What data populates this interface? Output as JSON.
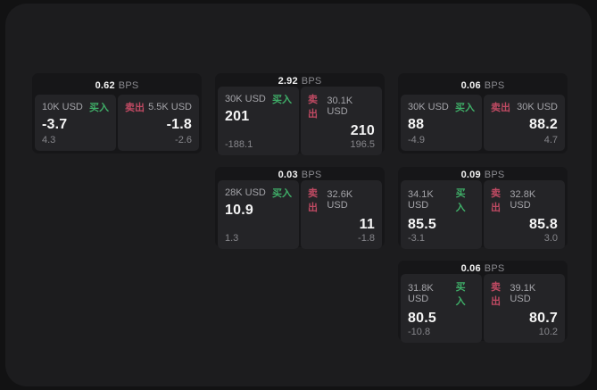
{
  "labels": {
    "bps_unit": "BPS",
    "buy": "买入",
    "sell": "卖出"
  },
  "colors": {
    "page_bg": "#121213",
    "window_bg": "#1c1c1e",
    "card_bg": "#161618",
    "panel_bg": "#242427",
    "buy_accent": "#3fae68",
    "sell_accent": "#c04a63",
    "value_text": "#f5f5f5",
    "muted_text": "#89898e"
  },
  "cards": [
    {
      "bps": "0.62",
      "buy": {
        "size": "10K USD",
        "price": "-3.7",
        "delta": "4.3"
      },
      "sell": {
        "size": "5.5K USD",
        "price": "-1.8",
        "delta": "-2.6"
      }
    },
    {
      "bps": "2.92",
      "buy": {
        "size": "30K USD",
        "price": "201",
        "delta": "-188.1"
      },
      "sell": {
        "size": "30.1K USD",
        "price": "210",
        "delta": "196.5"
      }
    },
    {
      "bps": "0.06",
      "buy": {
        "size": "30K USD",
        "price": "88",
        "delta": "-4.9"
      },
      "sell": {
        "size": "30K USD",
        "price": "88.2",
        "delta": "4.7"
      }
    },
    {
      "bps": "0.03",
      "buy": {
        "size": "28K USD",
        "price": "10.9",
        "delta": "1.3"
      },
      "sell": {
        "size": "32.6K USD",
        "price": "11",
        "delta": "-1.8"
      }
    },
    {
      "bps": "0.09",
      "buy": {
        "size": "34.1K USD",
        "price": "85.5",
        "delta": "-3.1"
      },
      "sell": {
        "size": "32.8K USD",
        "price": "85.8",
        "delta": "3.0"
      }
    },
    {
      "bps": "0.06",
      "buy": {
        "size": "31.8K USD",
        "price": "80.5",
        "delta": "-10.8"
      },
      "sell": {
        "size": "39.1K USD",
        "price": "80.7",
        "delta": "10.2"
      }
    }
  ]
}
